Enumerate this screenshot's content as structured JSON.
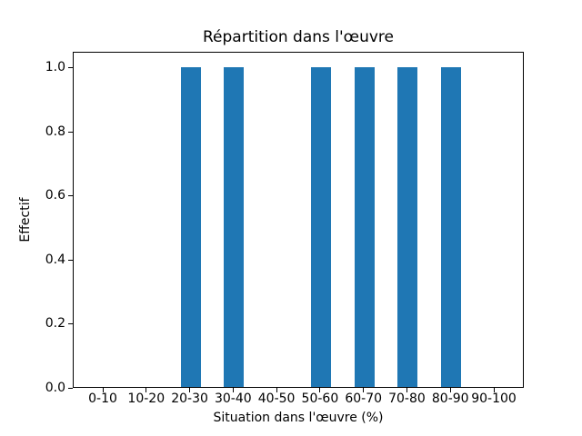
{
  "figure": {
    "background": "#ffffff",
    "bar_color": "#1f77b4",
    "axis_color": "#000000"
  },
  "chart_data": {
    "type": "bar",
    "title": "Répartition dans l'œuvre",
    "xlabel": "Situation dans l'œuvre (%)",
    "ylabel": "Effectif",
    "categories": [
      "0-10",
      "10-20",
      "20-30",
      "30-40",
      "40-50",
      "50-60",
      "60-70",
      "70-80",
      "80-90",
      "90-100"
    ],
    "values": [
      0,
      0,
      1,
      1,
      0,
      1,
      1,
      1,
      1,
      0
    ],
    "yticks": [
      {
        "value": 0.0,
        "label": "0.0"
      },
      {
        "value": 0.2,
        "label": "0.2"
      },
      {
        "value": 0.4,
        "label": "0.4"
      },
      {
        "value": 0.6,
        "label": "0.6"
      },
      {
        "value": 0.8,
        "label": "0.8"
      },
      {
        "value": 1.0,
        "label": "1.0"
      }
    ],
    "ylim": [
      0,
      1.05
    ],
    "grid": false,
    "legend": "none"
  }
}
